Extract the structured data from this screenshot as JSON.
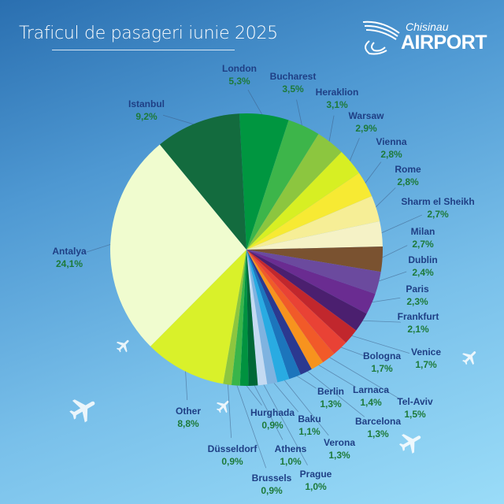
{
  "chart_data": {
    "type": "pie",
    "title": "Traficul de pasageri iunie 2025",
    "unit": "%",
    "slices": [
      {
        "label": "London",
        "value": 5.3,
        "text": "5,3%",
        "color": "#009640"
      },
      {
        "label": "Bucharest",
        "value": 3.5,
        "text": "3,5%",
        "color": "#3db54a"
      },
      {
        "label": "Heraklion",
        "value": 3.1,
        "text": "3,1%",
        "color": "#8cc63f"
      },
      {
        "label": "Warsaw",
        "value": 2.9,
        "text": "2,9%",
        "color": "#d7ef23"
      },
      {
        "label": "Vienna",
        "value": 2.8,
        "text": "2,8%",
        "color": "#f7ea33"
      },
      {
        "label": "Rome",
        "value": 2.8,
        "text": "2,8%",
        "color": "#f6ee96"
      },
      {
        "label": "Sharm el Sheikh",
        "value": 2.7,
        "text": "2,7%",
        "color": "#f5f2c6"
      },
      {
        "label": "Milan",
        "value": 2.7,
        "text": "2,7%",
        "color": "#7a5230"
      },
      {
        "label": "Dublin",
        "value": 2.4,
        "text": "2,4%",
        "color": "#6b4a9e"
      },
      {
        "label": "Paris",
        "value": 2.3,
        "text": "2,3%",
        "color": "#6a2c91"
      },
      {
        "label": "Frankfurt",
        "value": 2.1,
        "text": "2,1%",
        "color": "#4b1f6f"
      },
      {
        "label": "Venice",
        "value": 1.7,
        "text": "1,7%",
        "color": "#c1272d"
      },
      {
        "label": "Bologna",
        "value": 1.7,
        "text": "1,7%",
        "color": "#e94235"
      },
      {
        "label": "Tel-Aviv",
        "value": 1.5,
        "text": "1,5%",
        "color": "#f15a29"
      },
      {
        "label": "Larnaca",
        "value": 1.4,
        "text": "1,4%",
        "color": "#f7931e"
      },
      {
        "label": "Barcelona",
        "value": 1.3,
        "text": "1,3%",
        "color": "#2b3990"
      },
      {
        "label": "Berlin",
        "value": 1.3,
        "text": "1,3%",
        "color": "#1c75bc"
      },
      {
        "label": "Verona",
        "value": 1.3,
        "text": "1,3%",
        "color": "#29abe2"
      },
      {
        "label": "Baku",
        "value": 1.1,
        "text": "1,1%",
        "color": "#7fb3e0"
      },
      {
        "label": "Prague",
        "value": 1.0,
        "text": "1,0%",
        "color": "#c4daf2"
      },
      {
        "label": "Athens",
        "value": 1.0,
        "text": "1,0%",
        "color": "#006837"
      },
      {
        "label": "Hurghada",
        "value": 0.9,
        "text": "0,9%",
        "color": "#00923f"
      },
      {
        "label": "Brussels",
        "value": 0.9,
        "text": "0,9%",
        "color": "#39b54a"
      },
      {
        "label": "Düsseldorf",
        "value": 0.9,
        "text": "0,9%",
        "color": "#8dc63f"
      },
      {
        "label": "Other",
        "value": 8.8,
        "text": "8,8%",
        "color": "#d9f12a"
      },
      {
        "label": "Antalya",
        "value": 24.1,
        "text": "24,1%",
        "color": "#f0fccf"
      },
      {
        "label": "Istanbul",
        "value": 9.2,
        "text": "9,2%",
        "color": "#136b3e"
      }
    ],
    "legend": "leader-line labels around pie"
  },
  "header": {
    "title": "Traficul de pasageri iunie 2025"
  },
  "logo": {
    "city": "Chisinau",
    "name": "AIRPORT"
  }
}
